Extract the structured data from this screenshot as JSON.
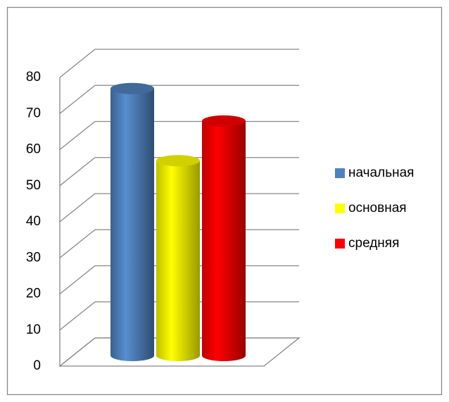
{
  "chart_data": {
    "type": "bar",
    "categories": [
      null
    ],
    "series": [
      {
        "name": "начальная",
        "color": "#4f81bd",
        "values": [
          74
        ]
      },
      {
        "name": "основная",
        "color": "#ffff00",
        "values": [
          54
        ]
      },
      {
        "name": "средняя",
        "color": "#ff0000",
        "values": [
          65
        ]
      }
    ],
    "ylim": [
      0,
      80
    ],
    "yticks": [
      0,
      10,
      20,
      30,
      40,
      50,
      60,
      70,
      80
    ],
    "grid": true,
    "legend": "right"
  }
}
